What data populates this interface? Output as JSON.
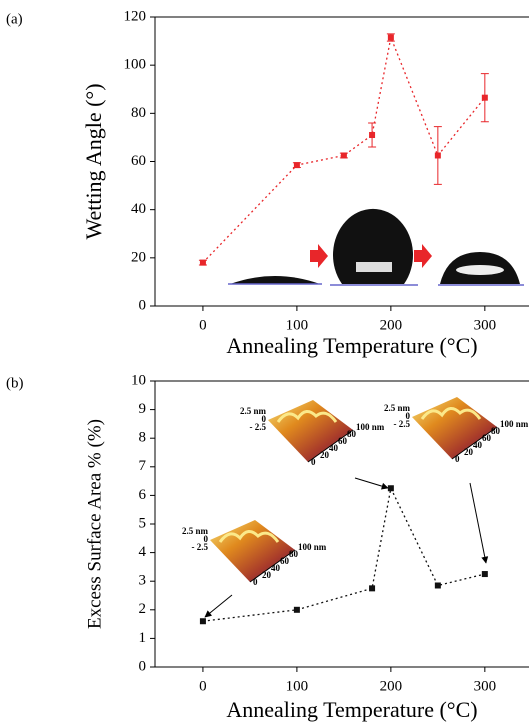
{
  "chart_data": [
    {
      "type": "line",
      "panel_label": "(a)",
      "ylabel": "Wetting Angle (°)",
      "xlabel": "Annealing Temperature (°C)",
      "x": [
        0,
        100,
        150,
        180,
        200,
        250,
        300
      ],
      "series": [
        {
          "color": "#e8262a",
          "values": [
            18,
            58.5,
            62.5,
            71,
            111.5,
            62.5,
            86.5
          ],
          "errors": [
            1,
            1,
            1,
            5,
            1.5,
            12,
            10
          ]
        }
      ],
      "xlim": [
        -51,
        347
      ],
      "ylim": [
        0,
        120
      ],
      "xticks": [
        0,
        100,
        200,
        300
      ],
      "yticks": [
        0,
        20,
        40,
        60,
        80,
        100,
        120
      ],
      "line_style": "dotted",
      "marker": "square"
    },
    {
      "type": "line",
      "panel_label": "(b)",
      "ylabel": "Excess Surface Area % (%)",
      "xlabel": "Annealing Temperature (°C)",
      "x": [
        0,
        100,
        180,
        200,
        250,
        300
      ],
      "series": [
        {
          "color": "#111111",
          "values": [
            1.6,
            2.0,
            2.75,
            6.25,
            2.85,
            3.25
          ]
        }
      ],
      "xlim": [
        -51,
        347
      ],
      "ylim": [
        0,
        10
      ],
      "xticks": [
        0,
        100,
        200,
        300
      ],
      "yticks": [
        0,
        1,
        2,
        3,
        4,
        5,
        6,
        7,
        8,
        9,
        10
      ],
      "line_style": "dotted",
      "marker": "square",
      "inset_labels": {
        "z": [
          "2.5 nm",
          "0",
          "- 2.5"
        ],
        "xy": [
          "100 nm",
          "80",
          "60",
          "40",
          "20",
          "0"
        ]
      }
    }
  ]
}
